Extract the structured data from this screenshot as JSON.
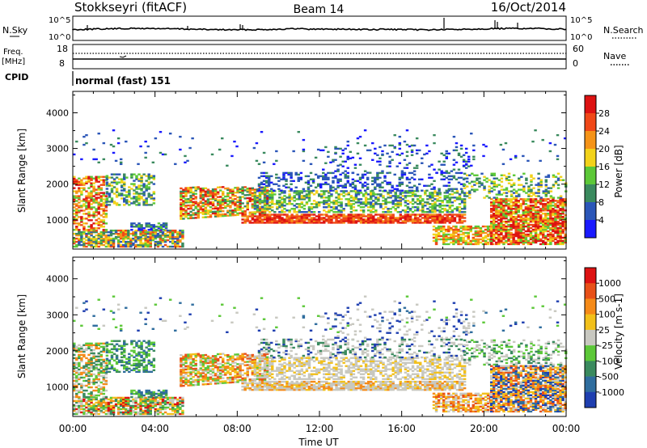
{
  "header": {
    "station": "Stokkseyri (fitACF)",
    "beam": "Beam 14",
    "date": "16/Oct/2014"
  },
  "strip_panels": {
    "nsky_label": "N.Sky",
    "nsky_ticks": [
      "10^5",
      "10^0"
    ],
    "nsearch_label": "N.Search",
    "nsearch_ticks": [
      "10^5",
      "10^0"
    ],
    "freq_label": "Freq.",
    "freq_unit": "[MHz]",
    "freq_ticks": [
      "18",
      "8"
    ],
    "nave_label": "Nave",
    "nave_ticks": [
      "60",
      "0"
    ],
    "cpid_label": "CPID",
    "cpid_value": "normal (fast) 151"
  },
  "chart_data": [
    {
      "type": "heatmap",
      "panel": "power",
      "ylabel": "Slant Range [km]",
      "xlabel": "",
      "ylim": [
        180,
        4600
      ],
      "yticks": [
        "1000",
        "2000",
        "3000",
        "4000"
      ],
      "colorbar_label": "Power [dB]",
      "colorbar_ticks": [
        "4",
        "8",
        "12",
        "16",
        "20",
        "24",
        "28"
      ],
      "colors": [
        "#1a1aff",
        "#2b56b8",
        "#3a8a5e",
        "#5cc838",
        "#f2d21a",
        "#f59318",
        "#f04818",
        "#dd1212"
      ]
    },
    {
      "type": "heatmap",
      "panel": "velocity",
      "ylabel": "Slant Range [km]",
      "xlabel": "Time UT",
      "ylim": [
        180,
        4600
      ],
      "yticks": [
        "1000",
        "2000",
        "3000",
        "4000"
      ],
      "xticks": [
        "00:00",
        "04:00",
        "08:00",
        "12:00",
        "16:00",
        "20:00",
        "00:00"
      ],
      "colorbar_label": "Velocity [m s-1]",
      "colorbar_ticks": [
        "1000",
        "500",
        "100",
        "25",
        "-25",
        "-100",
        "-500",
        "-1000"
      ],
      "colors": [
        "#1f3fb0",
        "#2f6d9e",
        "#3a8a5e",
        "#5cc838",
        "#c8c8c0",
        "#f2c01a",
        "#f58a18",
        "#e85018",
        "#dd1212"
      ]
    }
  ]
}
